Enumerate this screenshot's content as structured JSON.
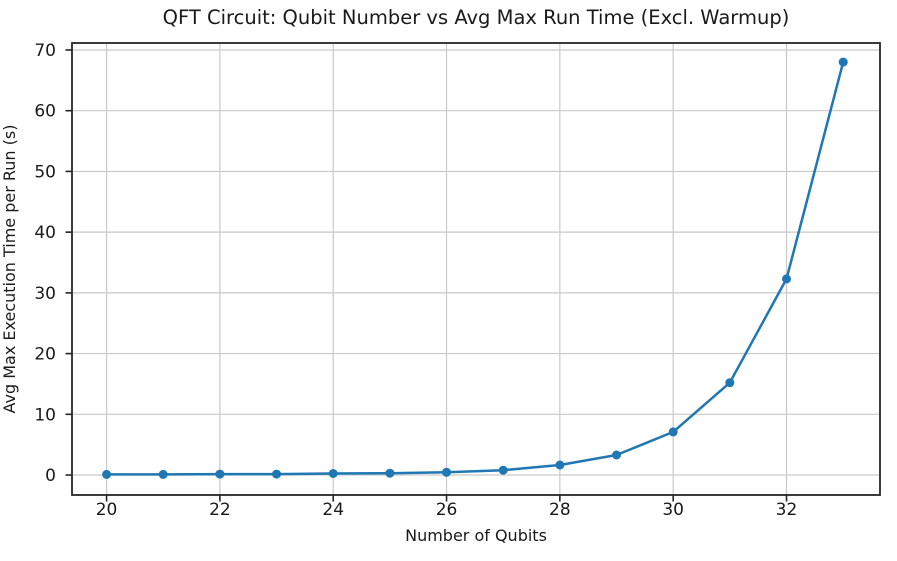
{
  "chart_data": {
    "type": "line",
    "title": "QFT Circuit: Qubit Number vs Avg Max Run Time (Excl. Warmup)",
    "xlabel": "Number of Qubits",
    "ylabel": "Avg Max Execution Time per Run (s)",
    "series": [
      {
        "name": "avg_max_run_time",
        "x": [
          20,
          21,
          22,
          23,
          24,
          25,
          26,
          27,
          28,
          29,
          30,
          31,
          32,
          33
        ],
        "y": [
          0.1,
          0.1,
          0.15,
          0.16,
          0.25,
          0.3,
          0.45,
          0.8,
          1.65,
          3.3,
          7.1,
          15.2,
          32.3,
          68.0
        ]
      }
    ],
    "x_ticks": [
      20,
      22,
      24,
      26,
      28,
      30,
      32
    ],
    "y_ticks": [
      0,
      10,
      20,
      30,
      40,
      50,
      60,
      70
    ],
    "xlim": [
      19.39,
      33.65
    ],
    "ylim": [
      -3.29,
      71.15
    ],
    "grid": true,
    "legend": false,
    "line_color": "#1f77b4",
    "marker": "circle",
    "marker_color": "#1f77b4",
    "grid_color": "#c9c9c9",
    "spine_color": "#262626",
    "tick_color": "#262626",
    "text_color": "#1a1a1a",
    "background_color": "#ffffff"
  }
}
